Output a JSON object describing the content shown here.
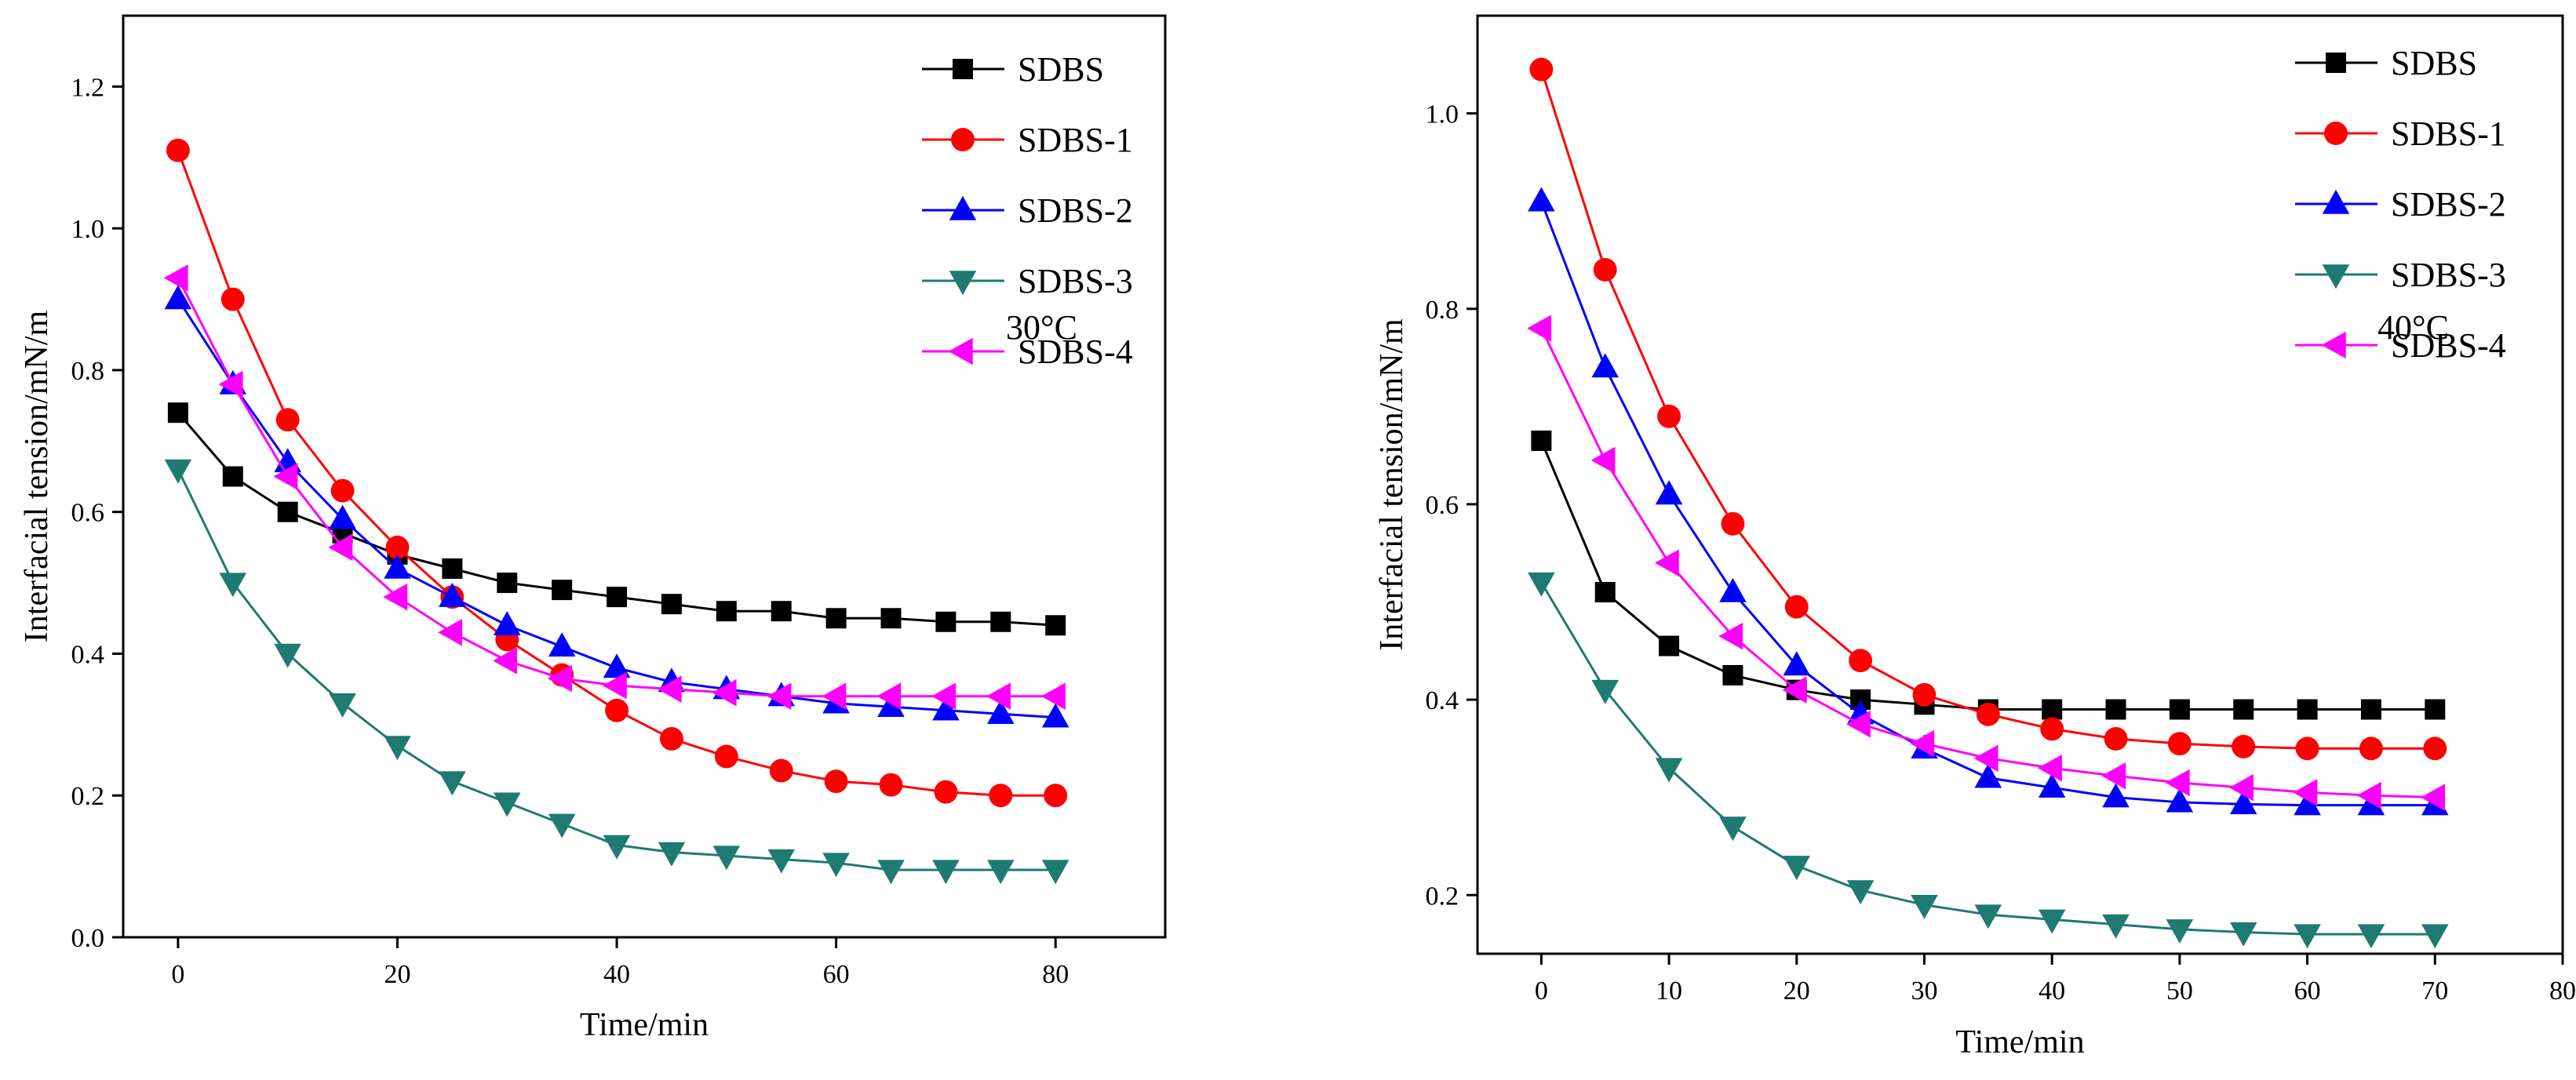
{
  "chart_data": [
    {
      "type": "line",
      "xlabel": "Time/min",
      "ylabel": "Interfacial tension/mN/m",
      "annotation": "30°C",
      "xlim": [
        -5,
        90
      ],
      "ylim": [
        0.0,
        1.3
      ],
      "xticks": [
        0,
        20,
        40,
        60,
        80
      ],
      "yticks": [
        0.0,
        0.2,
        0.4,
        0.6,
        0.8,
        1.0,
        1.2
      ],
      "ytick_labels": [
        "0.0",
        "0.2",
        "0.4",
        "0.6",
        "0.8",
        "1.0",
        "1.2"
      ],
      "legend_position": "top-right",
      "x": [
        0,
        5,
        10,
        15,
        20,
        25,
        30,
        35,
        40,
        45,
        50,
        55,
        60,
        65,
        70,
        75,
        80
      ],
      "series": [
        {
          "name": "SDBS",
          "color": "#000000",
          "marker": "square",
          "values": [
            0.74,
            0.65,
            0.6,
            0.57,
            0.54,
            0.52,
            0.5,
            0.49,
            0.48,
            0.47,
            0.46,
            0.46,
            0.45,
            0.45,
            0.445,
            0.445,
            0.44
          ]
        },
        {
          "name": "SDBS-1",
          "color": "#ff0000",
          "marker": "circle",
          "values": [
            1.11,
            0.9,
            0.73,
            0.63,
            0.55,
            0.48,
            0.42,
            0.37,
            0.32,
            0.28,
            0.255,
            0.235,
            0.22,
            0.215,
            0.205,
            0.2,
            0.2
          ]
        },
        {
          "name": "SDBS-2",
          "color": "#0000ff",
          "marker": "triangle-up",
          "values": [
            0.9,
            0.78,
            0.67,
            0.59,
            0.52,
            0.48,
            0.44,
            0.41,
            0.38,
            0.36,
            0.35,
            0.34,
            0.33,
            0.325,
            0.32,
            0.315,
            0.31
          ]
        },
        {
          "name": "SDBS-3",
          "color": "#1f7a72",
          "marker": "triangle-down",
          "values": [
            0.66,
            0.5,
            0.4,
            0.33,
            0.27,
            0.22,
            0.19,
            0.16,
            0.13,
            0.12,
            0.115,
            0.11,
            0.105,
            0.095,
            0.095,
            0.095,
            0.095
          ]
        },
        {
          "name": "SDBS-4",
          "color": "#ff00ff",
          "marker": "triangle-left",
          "values": [
            0.93,
            0.78,
            0.65,
            0.55,
            0.48,
            0.43,
            0.39,
            0.365,
            0.355,
            0.35,
            0.345,
            0.34,
            0.34,
            0.34,
            0.34,
            0.34,
            0.34
          ]
        }
      ]
    },
    {
      "type": "line",
      "xlabel": "Time/min",
      "ylabel": "Interfacial tension/mN/m",
      "annotation": "40°C",
      "xlim": [
        -5,
        80
      ],
      "ylim": [
        0.14,
        1.1
      ],
      "xticks": [
        0,
        10,
        20,
        30,
        40,
        50,
        60,
        70,
        80
      ],
      "yticks": [
        0.2,
        0.4,
        0.6,
        0.8,
        1.0
      ],
      "ytick_labels": [
        "0.2",
        "0.4",
        "0.6",
        "0.8",
        "1.0"
      ],
      "legend_position": "top-right",
      "x": [
        0,
        5,
        10,
        15,
        20,
        25,
        30,
        35,
        40,
        45,
        50,
        55,
        60,
        65,
        70
      ],
      "series": [
        {
          "name": "SDBS",
          "color": "#000000",
          "marker": "square",
          "values": [
            0.665,
            0.51,
            0.455,
            0.425,
            0.41,
            0.4,
            0.395,
            0.39,
            0.39,
            0.39,
            0.39,
            0.39,
            0.39,
            0.39,
            0.39
          ]
        },
        {
          "name": "SDBS-1",
          "color": "#ff0000",
          "marker": "circle",
          "values": [
            1.045,
            0.84,
            0.69,
            0.58,
            0.495,
            0.44,
            0.405,
            0.385,
            0.37,
            0.36,
            0.355,
            0.352,
            0.35,
            0.35,
            0.35
          ]
        },
        {
          "name": "SDBS-2",
          "color": "#0000ff",
          "marker": "triangle-up",
          "values": [
            0.91,
            0.74,
            0.61,
            0.51,
            0.435,
            0.385,
            0.35,
            0.32,
            0.31,
            0.3,
            0.295,
            0.293,
            0.292,
            0.292,
            0.292
          ]
        },
        {
          "name": "SDBS-3",
          "color": "#1f7a72",
          "marker": "triangle-down",
          "values": [
            0.52,
            0.41,
            0.33,
            0.27,
            0.23,
            0.205,
            0.19,
            0.18,
            0.175,
            0.17,
            0.165,
            0.162,
            0.16,
            0.16,
            0.16
          ]
        },
        {
          "name": "SDBS-4",
          "color": "#ff00ff",
          "marker": "triangle-left",
          "values": [
            0.78,
            0.645,
            0.54,
            0.465,
            0.41,
            0.375,
            0.355,
            0.34,
            0.33,
            0.322,
            0.315,
            0.31,
            0.305,
            0.302,
            0.3
          ]
        }
      ]
    }
  ]
}
